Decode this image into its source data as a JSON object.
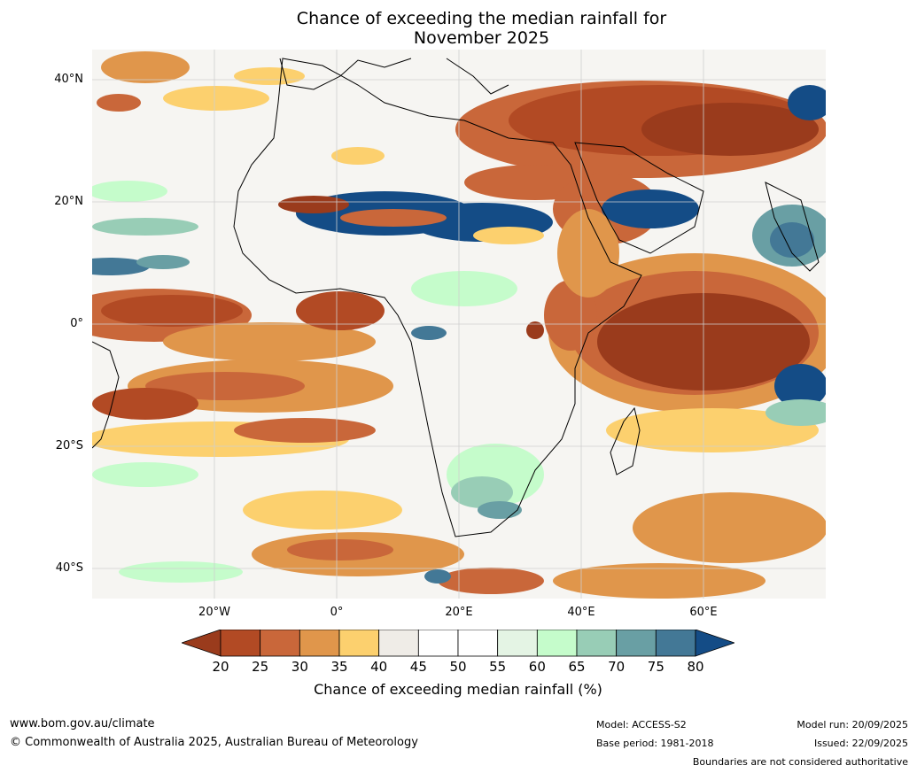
{
  "title_line1": "Chance of exceeding the median rainfall for",
  "title_line2": "November 2025",
  "lat_labels": [
    "40°N",
    "20°N",
    "0°",
    "20°S",
    "40°S"
  ],
  "lon_labels": [
    "20°W",
    "0°",
    "20°E",
    "40°E",
    "60°E"
  ],
  "colorbar": {
    "ticks": [
      "20",
      "25",
      "30",
      "35",
      "40",
      "45",
      "50",
      "55",
      "60",
      "65",
      "70",
      "75",
      "80"
    ],
    "colors": [
      "#9a3b1c",
      "#b24a24",
      "#c9673a",
      "#e0964b",
      "#fcd06e",
      "#efece7",
      "#ffffff",
      "#ffffff",
      "#e4f4e4",
      "#c5fccb",
      "#98cdb6",
      "#699fa4",
      "#437896",
      "#144c86"
    ],
    "label": "Chance of exceeding median rainfall (%)"
  },
  "footer": {
    "website": "www.bom.gov.au/climate",
    "copyright": "© Commonwealth of Australia 2025, Australian Bureau of Meteorology",
    "model": "Model: ACCESS-S2",
    "base_period": "Base period: 1981-2018",
    "model_run": "Model run: 20/09/2025",
    "issued": "Issued: 22/09/2025",
    "disclaimer": "Boundaries are not considered authoritative"
  }
}
